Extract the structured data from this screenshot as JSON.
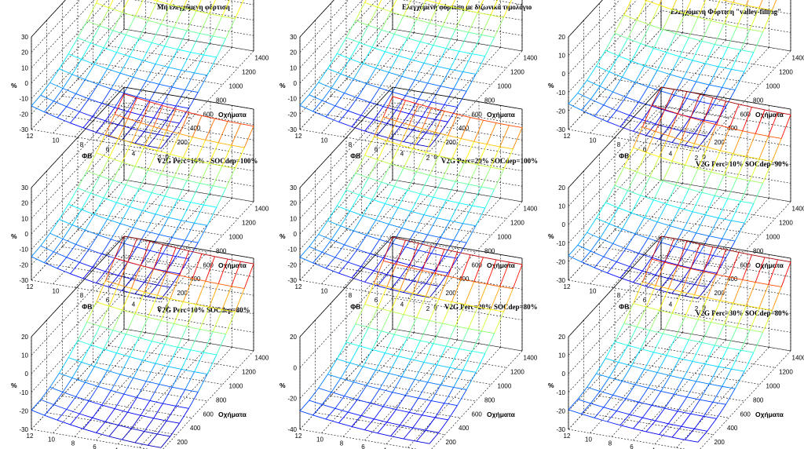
{
  "figure": {
    "colormap_name": "jet",
    "colormap": [
      "#00008f",
      "#0000ff",
      "#0080ff",
      "#00ffff",
      "#80ff80",
      "#ffff00",
      "#ff8000",
      "#ff0000",
      "#800000"
    ]
  },
  "chart_data": [
    {
      "type": "surface3d",
      "title": "Μη ελεγχόμενη φόρτιση",
      "title_align": "center",
      "xlabel": "ΦΒ",
      "ylabel": "Οχήματα",
      "zlabel": "%",
      "x_ticks": [
        "12",
        "10",
        "8",
        "6",
        "4",
        "2"
      ],
      "y_ticks": [
        "200",
        "400",
        "600",
        "800",
        "1000",
        "1200",
        "1400"
      ],
      "z_ticks": [
        "30",
        "20",
        "10",
        "0",
        "-10",
        "-20",
        "-30"
      ],
      "x_range": [
        0,
        12
      ],
      "y_range": [
        0,
        1400
      ],
      "z_range": [
        -30,
        30
      ],
      "z_low": -28,
      "z_high": 18,
      "curvature": 0.95
    },
    {
      "type": "surface3d",
      "title": "Ελεγχόμενη φόρτιση με διζωνικό τιμολόγιο",
      "title_align": "center",
      "xlabel": "ΦΒ",
      "ylabel": "Οχήματα",
      "zlabel": "%",
      "x_ticks": [
        "12",
        "10",
        "8",
        "6",
        "4",
        "2"
      ],
      "y_ticks": [
        "200",
        "400",
        "600",
        "800",
        "1000",
        "1200",
        "1400"
      ],
      "z_ticks": [
        "30",
        "20",
        "10",
        "0",
        "-10",
        "-20",
        "-30"
      ],
      "x_range": [
        0,
        12
      ],
      "y_range": [
        0,
        1400
      ],
      "z_range": [
        -30,
        30
      ],
      "z_low": -27,
      "z_high": 19,
      "curvature": 0.9
    },
    {
      "type": "surface3d",
      "title": "Ελεγχόμενη Φόρτιση \"valley-filling\"",
      "title_align": "center",
      "xlabel": "ΦΒ",
      "ylabel": "Οχήματα",
      "zlabel": "%",
      "x_ticks": [
        "12",
        "10",
        "8",
        "6",
        "4",
        "2"
      ],
      "y_ticks": [
        "200",
        "400",
        "600",
        "800",
        "1000",
        "1200",
        "1400"
      ],
      "z_ticks": [
        "20",
        "10",
        "0",
        "-10",
        "-20",
        "-30"
      ],
      "x_range": [
        0,
        12
      ],
      "y_range": [
        0,
        1400
      ],
      "z_range": [
        -30,
        20
      ],
      "z_low": -28,
      "z_high": 17,
      "curvature": 0.85
    },
    {
      "type": "surface3d",
      "title": "V2G Perc=10% - SOCdep=100%",
      "title_align": "right",
      "xlabel": "ΦΒ",
      "ylabel": "Οχήματα",
      "zlabel": "%",
      "x_ticks": [
        "12",
        "10",
        "8",
        "6",
        "4",
        "2"
      ],
      "y_ticks": [
        "200",
        "400",
        "600",
        "800",
        "1000",
        "1200",
        "1400"
      ],
      "z_ticks": [
        "30",
        "20",
        "10",
        "0",
        "-10",
        "-20",
        "-30"
      ],
      "x_range": [
        0,
        12
      ],
      "y_range": [
        0,
        1400
      ],
      "z_range": [
        -30,
        30
      ],
      "z_low": -28,
      "z_high": 19,
      "curvature": 0.95
    },
    {
      "type": "surface3d",
      "title": "V2G Perc=20% SOCdep=100%",
      "title_align": "right",
      "xlabel": "ΦΒ",
      "ylabel": "Οχήματα",
      "zlabel": "%",
      "x_ticks": [
        "12",
        "10",
        "8",
        "6",
        "4",
        "2"
      ],
      "y_ticks": [
        "200",
        "400",
        "600",
        "800",
        "1000",
        "1200",
        "1400"
      ],
      "z_ticks": [
        "30",
        "20",
        "10",
        "0",
        "-10",
        "-20",
        "-30"
      ],
      "x_range": [
        0,
        12
      ],
      "y_range": [
        0,
        1400
      ],
      "z_range": [
        -30,
        30
      ],
      "z_low": -27,
      "z_high": 18,
      "curvature": 0.85
    },
    {
      "type": "surface3d",
      "title": "V2G Perc=10% SOCdep=90%",
      "title_align": "right",
      "xlabel": "ΦΒ",
      "ylabel": "Οχήματα",
      "zlabel": "%",
      "x_ticks": [
        "12",
        "10",
        "8",
        "6",
        "4",
        "2"
      ],
      "y_ticks": [
        "200",
        "400",
        "600",
        "800",
        "1000",
        "1200",
        "1400"
      ],
      "z_ticks": [
        "20",
        "10",
        "0",
        "-10",
        "-20",
        "-30"
      ],
      "x_range": [
        0,
        12
      ],
      "y_range": [
        0,
        1400
      ],
      "z_range": [
        -30,
        20
      ],
      "z_low": -28,
      "z_high": 17,
      "curvature": 0.8
    },
    {
      "type": "surface3d",
      "title": "V2G Perc=10% SOCdep=80%",
      "title_align": "right",
      "xlabel": "ΦΒ",
      "ylabel": "Οχήματα",
      "zlabel": "%",
      "x_ticks": [
        "12",
        "10",
        "8",
        "6",
        "4",
        "2",
        "0"
      ],
      "y_ticks": [
        "200",
        "400",
        "600",
        "800",
        "1000",
        "1200",
        "1400"
      ],
      "z_ticks": [
        "20",
        "10",
        "0",
        "-10",
        "-20",
        "-30"
      ],
      "x_range": [
        0,
        12
      ],
      "y_range": [
        0,
        1400
      ],
      "z_range": [
        -30,
        20
      ],
      "z_low": -28,
      "z_high": 17,
      "curvature": 0.6
    },
    {
      "type": "surface3d",
      "title": "V2G Perc=20% SOCdep=80%",
      "title_align": "right",
      "xlabel": "ΦΒ",
      "ylabel": "Οχήματα",
      "zlabel": "%",
      "x_ticks": [
        "12",
        "10",
        "8",
        "6",
        "4",
        "2",
        "0"
      ],
      "y_ticks": [
        "200",
        "400",
        "600",
        "800",
        "1000",
        "1200",
        "1400"
      ],
      "z_ticks": [
        "20",
        "0",
        "-20",
        "-40"
      ],
      "x_range": [
        0,
        12
      ],
      "y_range": [
        0,
        1400
      ],
      "z_range": [
        -40,
        20
      ],
      "z_low": -35,
      "z_high": 16,
      "curvature": 0.5
    },
    {
      "type": "surface3d",
      "title": "V2G Perc=30% SOCdep=80%",
      "title_align": "right",
      "xlabel": "ΦΒ",
      "ylabel": "Οχήματα",
      "zlabel": "%",
      "x_ticks": [
        "12",
        "10",
        "8",
        "6",
        "4",
        "2",
        "0"
      ],
      "y_ticks": [
        "200",
        "400",
        "600",
        "800",
        "1000",
        "1200",
        "1400"
      ],
      "z_ticks": [
        "20",
        "10",
        "0",
        "-10",
        "-20",
        "-30"
      ],
      "x_range": [
        0,
        12
      ],
      "y_range": [
        0,
        1400
      ],
      "z_range": [
        -30,
        20
      ],
      "z_low": -25,
      "z_high": 18,
      "curvature": 0.4
    }
  ]
}
